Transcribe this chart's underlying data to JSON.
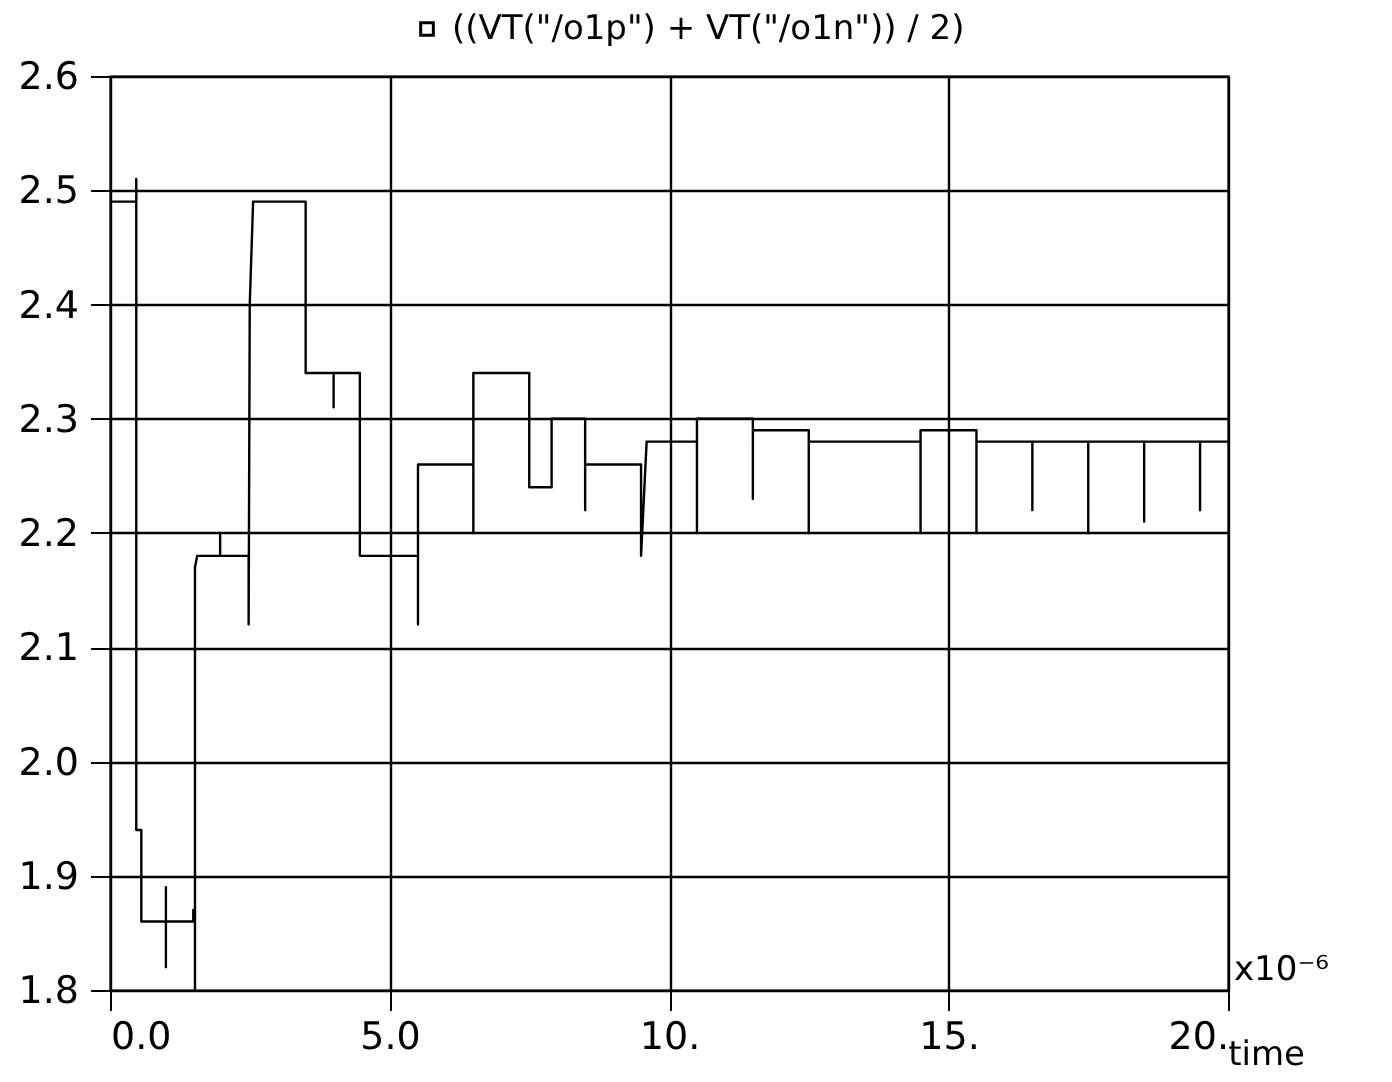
{
  "chart_data": {
    "type": "line",
    "xlabel": "time",
    "annotations": [
      "x10⁻⁶"
    ],
    "legend": "top",
    "grid": true,
    "marker": "none",
    "line_style": "solid",
    "xlim": [
      0,
      20
    ],
    "xticks": [
      {
        "value": 0,
        "label": "0.0"
      },
      {
        "value": 5,
        "label": "5.0"
      },
      {
        "value": 10,
        "label": "10."
      },
      {
        "value": 15,
        "label": "15."
      },
      {
        "value": 20,
        "label": "20."
      }
    ],
    "ylim": [
      1.8,
      2.6
    ],
    "yticks": [
      1.8,
      1.9,
      {
        "value": 2.0,
        "label": "2.0"
      },
      2.1,
      2.2,
      2.3,
      2.4,
      2.5,
      2.6
    ],
    "series": [
      {
        "name": "((VT(\"/o1p\") + VT(\"/o1n\")) / 2)",
        "color": "#000000",
        "x": [
          0,
          0.47,
          0.47,
          0.47,
          0.56,
          0.56,
          1.0,
          1.0,
          1.0,
          1.0,
          1.49,
          1.49,
          1.52,
          1.52,
          1.52,
          1.56,
          1.97,
          1.97,
          1.97,
          2.48,
          2.48,
          2.5,
          2.56,
          3.5,
          3.5,
          4.0,
          4.0,
          4.0,
          4.47,
          4.47,
          5.51,
          5.51,
          5.51,
          6.5,
          6.5,
          6.5,
          7.5,
          7.5,
          7.9,
          7.9,
          8.5,
          8.5,
          8.5,
          9.5,
          9.5,
          9.6,
          10.5,
          10.5,
          10.5,
          11.5,
          11.5,
          11.5,
          12.5,
          12.5,
          12.5,
          14.5,
          14.5,
          14.5,
          15.5,
          15.5,
          15.5,
          16.5,
          16.5,
          16.5,
          17.5,
          17.5,
          17.5,
          18.5,
          18.5,
          18.5,
          19.5,
          19.5,
          19.5,
          20
        ],
        "values": [
          2.49,
          2.49,
          2.51,
          1.94,
          1.94,
          1.86,
          1.86,
          1.82,
          1.89,
          1.86,
          1.86,
          1.87,
          1.87,
          1.8,
          2.17,
          2.18,
          2.18,
          2.2,
          2.18,
          2.18,
          2.12,
          2.4,
          2.49,
          2.49,
          2.34,
          2.34,
          2.31,
          2.34,
          2.34,
          2.18,
          2.18,
          2.12,
          2.26,
          2.26,
          2.2,
          2.34,
          2.34,
          2.24,
          2.24,
          2.3,
          2.3,
          2.22,
          2.26,
          2.26,
          2.18,
          2.28,
          2.28,
          2.2,
          2.3,
          2.3,
          2.23,
          2.29,
          2.29,
          2.2,
          2.28,
          2.28,
          2.2,
          2.29,
          2.29,
          2.2,
          2.28,
          2.28,
          2.22,
          2.28,
          2.28,
          2.2,
          2.28,
          2.28,
          2.21,
          2.28,
          2.28,
          2.22,
          2.28,
          2.28
        ]
      }
    ]
  }
}
